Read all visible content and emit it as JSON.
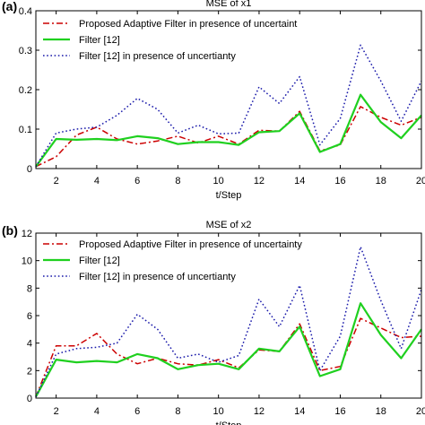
{
  "panels": [
    {
      "letter": "(a)",
      "chart_data": {
        "type": "line",
        "title": "MSE of x1",
        "xlabel": "t/Step",
        "ylabel": "",
        "xlim": [
          1,
          20
        ],
        "ylim": [
          0,
          0.4
        ],
        "x": [
          1,
          2,
          3,
          4,
          5,
          6,
          7,
          8,
          9,
          10,
          11,
          12,
          13,
          14,
          15,
          16,
          17,
          18,
          19,
          20
        ],
        "xtick_values": [
          2,
          4,
          6,
          8,
          10,
          12,
          14,
          16,
          18,
          20
        ],
        "xtick_labels": [
          "2",
          "4",
          "6",
          "8",
          "10",
          "12",
          "14",
          "16",
          "18",
          "20"
        ],
        "ytick_values": [
          0,
          0.1,
          0.2,
          0.3,
          0.4
        ],
        "ytick_labels": [
          "0",
          "0.1",
          "0.2",
          "0.3",
          "0.4"
        ],
        "legend_position": "top-left",
        "series": [
          {
            "name": "Proposed Adaptive Filter in presence of uncertaint",
            "color": "#cc0000",
            "style": "dashdot",
            "values": [
              0.005,
              0.03,
              0.085,
              0.105,
              0.075,
              0.062,
              0.07,
              0.082,
              0.065,
              0.082,
              0.062,
              0.097,
              0.095,
              0.145,
              0.045,
              0.06,
              0.157,
              0.13,
              0.11,
              0.13
            ]
          },
          {
            "name": "Filter [12]",
            "color": "#1fd01f",
            "style": "solid",
            "values": [
              0.005,
              0.075,
              0.073,
              0.075,
              0.072,
              0.082,
              0.077,
              0.062,
              0.067,
              0.067,
              0.06,
              0.092,
              0.095,
              0.14,
              0.042,
              0.062,
              0.187,
              0.118,
              0.077,
              0.135
            ]
          },
          {
            "name": "Filter [12] in presence of uncertianty",
            "color": "#1a1aaa",
            "style": "dotted",
            "values": [
              0.005,
              0.09,
              0.1,
              0.105,
              0.135,
              0.178,
              0.15,
              0.09,
              0.11,
              0.088,
              0.09,
              0.207,
              0.165,
              0.233,
              0.06,
              0.127,
              0.313,
              0.222,
              0.12,
              0.222
            ]
          }
        ]
      }
    },
    {
      "letter": "(b)",
      "chart_data": {
        "type": "line",
        "title": "MSE of x2",
        "xlabel": "t/Step",
        "ylabel": "",
        "xlim": [
          1,
          20
        ],
        "ylim": [
          0,
          12
        ],
        "x": [
          1,
          2,
          3,
          4,
          5,
          6,
          7,
          8,
          9,
          10,
          11,
          12,
          13,
          14,
          15,
          16,
          17,
          18,
          19,
          20
        ],
        "xtick_values": [
          2,
          4,
          6,
          8,
          10,
          12,
          14,
          16,
          18,
          20
        ],
        "xtick_labels": [
          "2",
          "4",
          "6",
          "8",
          "10",
          "12",
          "14",
          "16",
          "18",
          "20"
        ],
        "ytick_values": [
          0,
          2,
          4,
          6,
          8,
          10,
          12
        ],
        "ytick_labels": [
          "0",
          "2",
          "4",
          "6",
          "8",
          "10",
          "12"
        ],
        "legend_position": "top-left",
        "series": [
          {
            "name": "Proposed Adaptive Filter in presence of uncertainty",
            "color": "#cc0000",
            "style": "dashdot",
            "values": [
              0.1,
              3.8,
              3.8,
              4.7,
              3.2,
              2.5,
              2.9,
              2.5,
              2.4,
              2.8,
              2.2,
              3.5,
              3.4,
              5.4,
              2.0,
              2.3,
              5.8,
              5.1,
              4.4,
              4.5
            ]
          },
          {
            "name": "Filter [12]",
            "color": "#1fd01f",
            "style": "solid",
            "values": [
              0.1,
              2.8,
              2.6,
              2.7,
              2.6,
              3.2,
              2.9,
              2.1,
              2.4,
              2.5,
              2.1,
              3.6,
              3.4,
              5.2,
              1.6,
              2.1,
              6.9,
              4.6,
              2.9,
              5.0
            ]
          },
          {
            "name": "Filter [12] in presence of uncertianty",
            "color": "#1a1aaa",
            "style": "dotted",
            "values": [
              0.1,
              3.2,
              3.6,
              3.7,
              4.0,
              6.1,
              5.0,
              2.9,
              3.2,
              2.6,
              3.1,
              7.2,
              5.2,
              8.2,
              2.0,
              4.5,
              11.0,
              7.1,
              3.6,
              7.9
            ]
          }
        ]
      }
    }
  ]
}
